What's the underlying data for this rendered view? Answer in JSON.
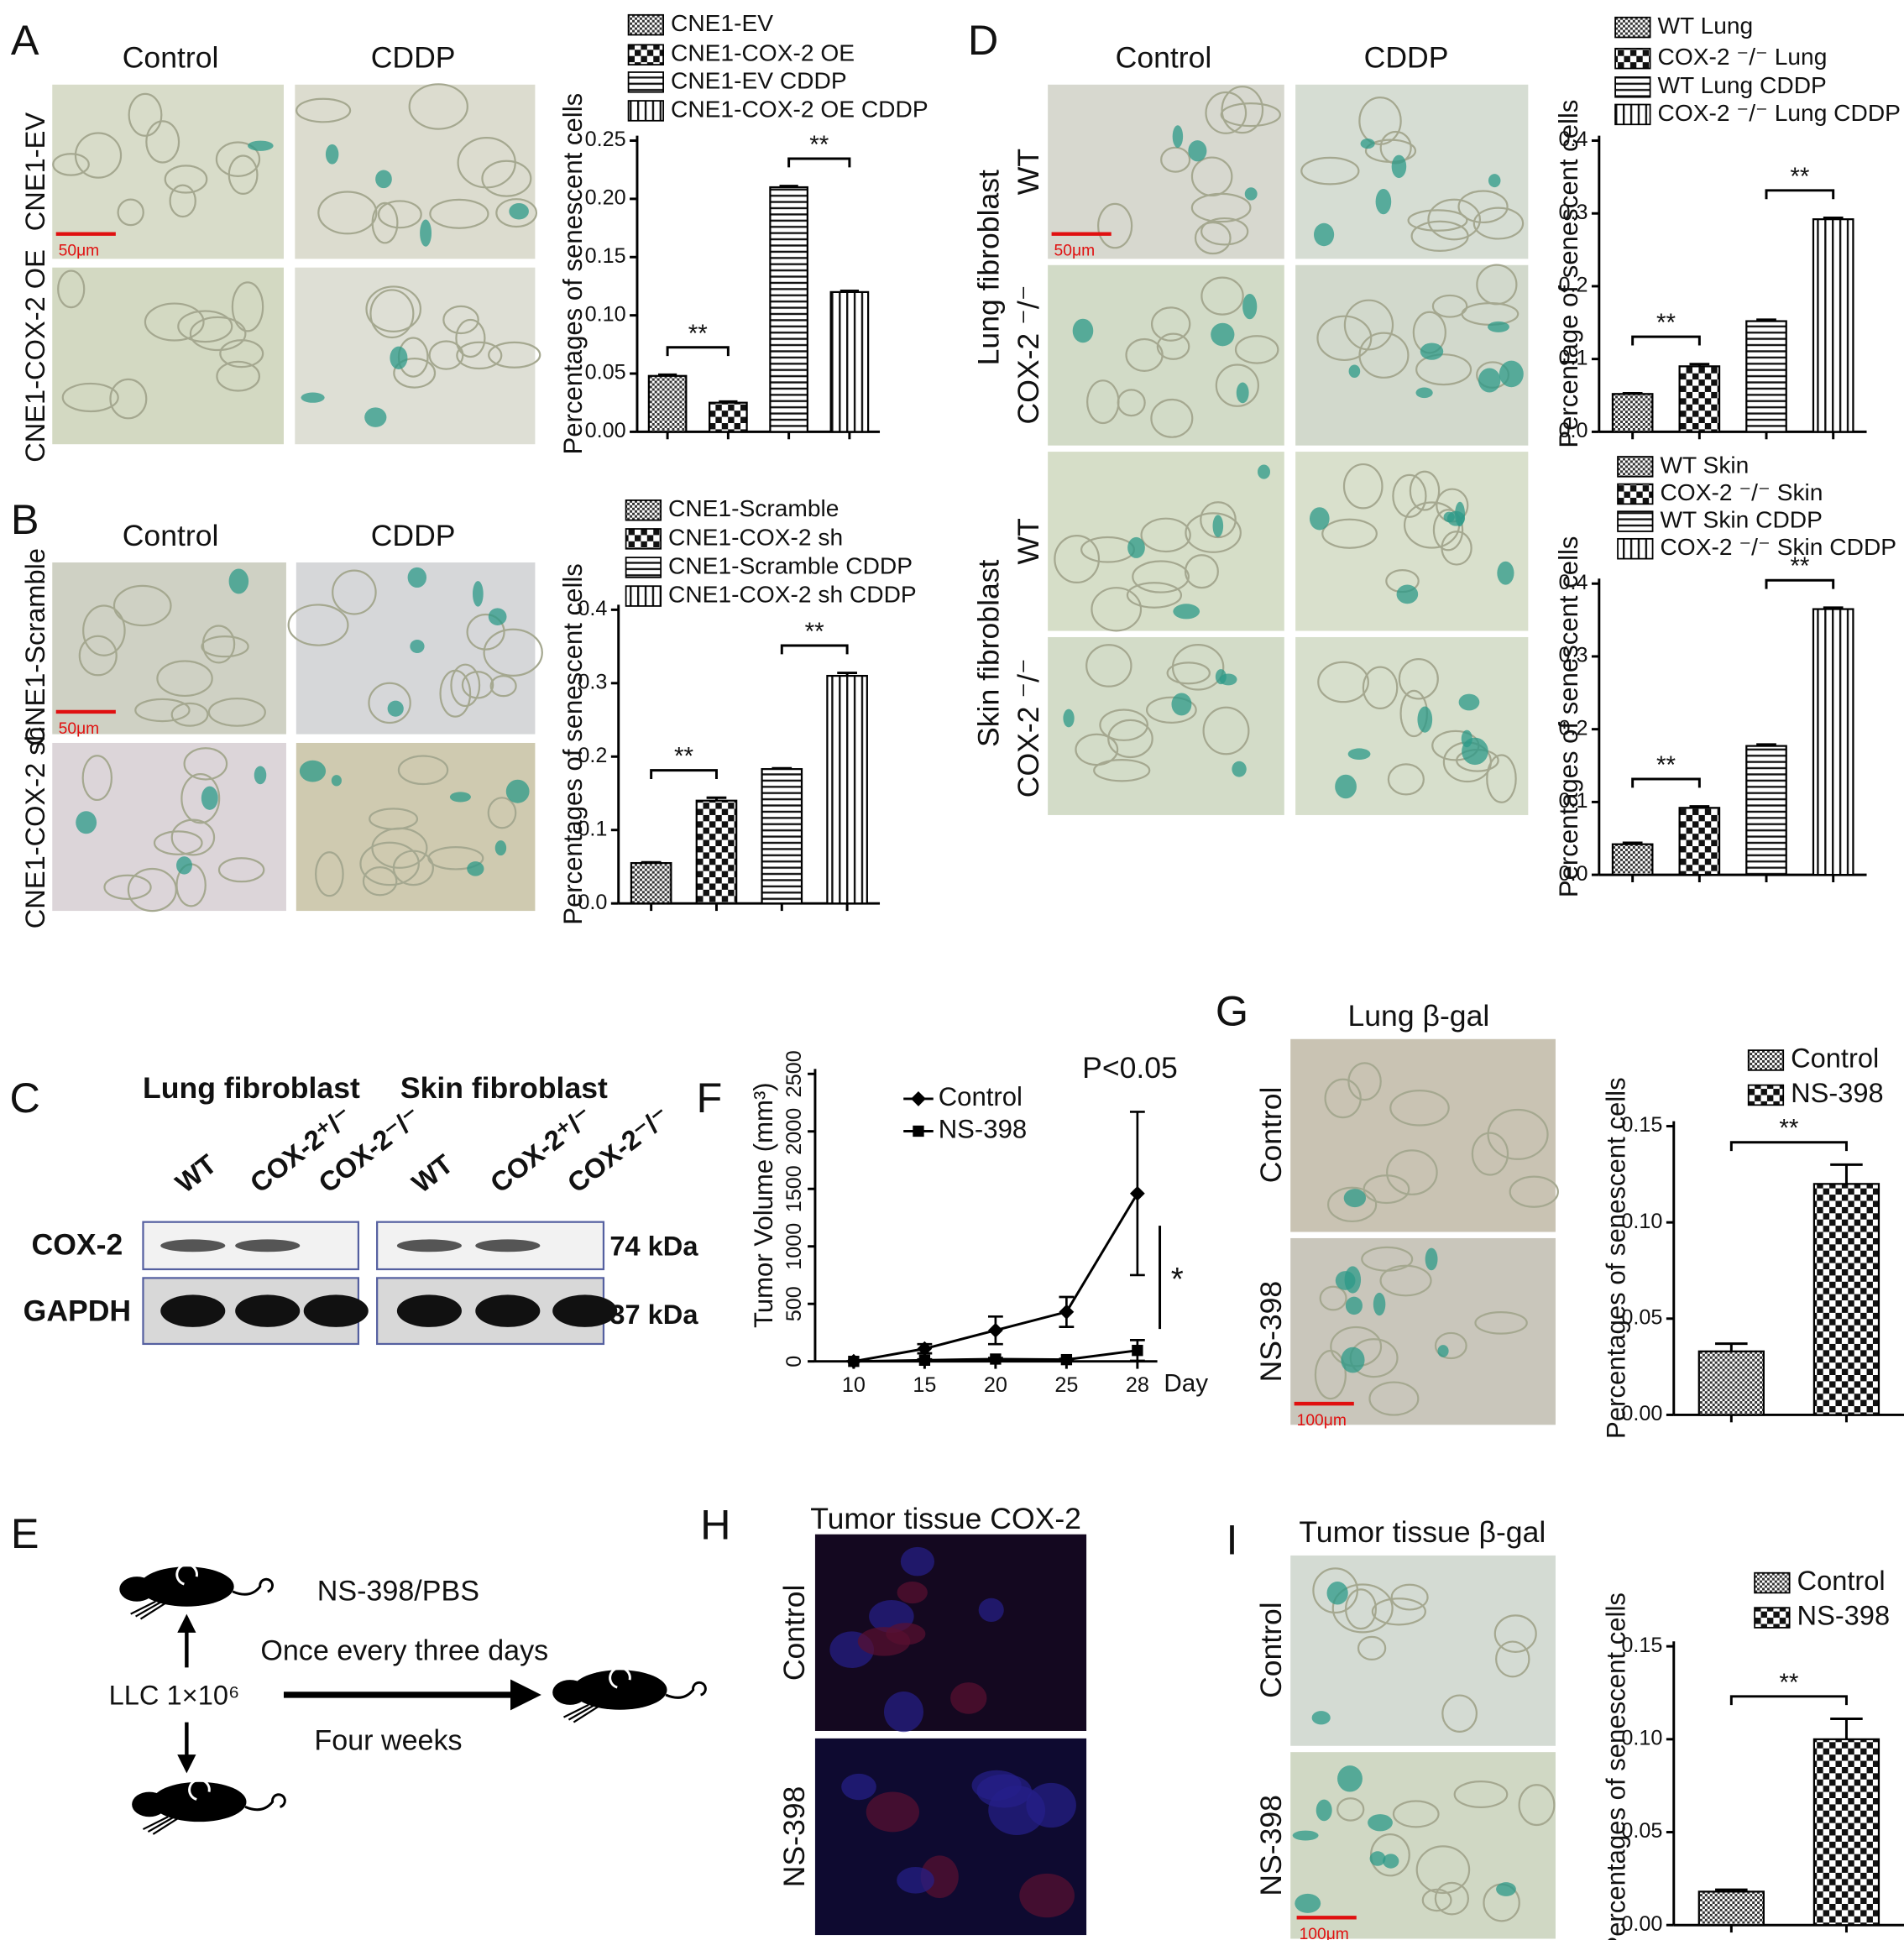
{
  "panel_letters": [
    "A",
    "B",
    "C",
    "D",
    "E",
    "F",
    "G",
    "H",
    "I"
  ],
  "micrographs": {
    "A": {
      "columns": [
        "Control",
        "CDDP"
      ],
      "rows": [
        "CNE1-EV",
        "CNE1-COX-2 OE"
      ],
      "scale_bar": "50μm"
    },
    "B": {
      "columns": [
        "Control",
        "CDDP"
      ],
      "rows": [
        "CNE1-Scramble",
        "CNE1-COX-2 sh"
      ],
      "scale_bar": "50μm"
    },
    "D": {
      "columns": [
        "Control",
        "CDDP"
      ],
      "groups": [
        "Lung fibroblast",
        "Skin fibroblast"
      ],
      "rows": [
        "WT",
        "COX-2 ⁻/⁻",
        "WT",
        "COX-2 ⁻/⁻"
      ],
      "scale_bar": "50μm"
    },
    "G": {
      "title": "Lung β-gal",
      "rows": [
        "Control",
        "NS-398"
      ],
      "scale_bar": "100μm"
    },
    "H": {
      "title": "Tumor tissue COX-2",
      "rows": [
        "Control",
        "NS-398"
      ]
    },
    "I": {
      "title": "Tumor tissue β-gal",
      "rows": [
        "Control",
        "NS-398"
      ],
      "scale_bar": "100μm"
    }
  },
  "western_blot": {
    "groups": [
      {
        "name": "Lung  fibroblast",
        "lanes": [
          "WT",
          "COX-2⁺/⁻",
          "COX-2⁻/⁻"
        ]
      },
      {
        "name": "Skin fibroblast",
        "lanes": [
          "WT",
          "COX-2⁺/⁻",
          "COX-2⁻/⁻"
        ]
      }
    ],
    "proteins": [
      {
        "name": "COX-2",
        "size": "74 kDa"
      },
      {
        "name": "GAPDH",
        "size": "37 kDa"
      }
    ]
  },
  "schematic": {
    "cells": "LLC 1×10⁶",
    "treatment": "NS-398/PBS",
    "frequency": "Once  every three days",
    "duration": "Four  weeks"
  },
  "chart_data": [
    {
      "type": "bar",
      "ylabel": "Percentages of senescent cells",
      "ylim": [
        0,
        0.25
      ],
      "yticks": [
        {
          "value": 0,
          "label": "0.00"
        },
        0.05,
        {
          "value": 0.1,
          "label": "0.10"
        },
        0.15,
        {
          "value": 0.2,
          "label": "0.20"
        },
        0.25
      ],
      "series": [
        {
          "name": "CNE1-EV",
          "pattern": "dots",
          "values": [
            0.048
          ],
          "errors": [
            0.001
          ]
        },
        {
          "name": "CNE1-COX-2 OE",
          "pattern": "checker",
          "values": [
            0.025
          ],
          "errors": [
            0.001
          ]
        },
        {
          "name": "CNE1-EV CDDP",
          "pattern": "horizontal",
          "values": [
            0.21
          ],
          "errors": [
            0.001
          ]
        },
        {
          "name": "CNE1-COX-2 OE CDDP",
          "pattern": "vertical",
          "values": [
            0.12
          ],
          "errors": [
            0.001
          ]
        }
      ],
      "annotations": [
        "**",
        "**"
      ]
    },
    {
      "type": "bar",
      "ylabel": "Percentages of senescent cells",
      "ylim": [
        0,
        0.4
      ],
      "yticks": [
        {
          "value": 0,
          "label": "0.0"
        },
        0.1,
        0.2,
        0.3,
        0.4
      ],
      "series": [
        {
          "name": "CNE1-Scramble",
          "pattern": "dots",
          "values": [
            0.055
          ],
          "errors": [
            0.001
          ]
        },
        {
          "name": "CNE1-COX-2 sh",
          "pattern": "checker",
          "values": [
            0.14
          ],
          "errors": [
            0.004
          ]
        },
        {
          "name": "CNE1-Scramble CDDP",
          "pattern": "horizontal",
          "values": [
            0.183
          ],
          "errors": [
            0.001
          ]
        },
        {
          "name": "CNE1-COX-2 sh CDDP",
          "pattern": "vertical",
          "values": [
            0.31
          ],
          "errors": [
            0.004
          ]
        }
      ],
      "annotations": [
        "**",
        "**"
      ]
    },
    {
      "type": "bar",
      "ylabel": "Percentage of senescent cells",
      "ylim": [
        0,
        0.4
      ],
      "yticks": [
        {
          "value": 0,
          "label": "0.0"
        },
        0.1,
        0.2,
        0.3,
        0.4
      ],
      "series": [
        {
          "name": "WT Lung",
          "pattern": "dots",
          "values": [
            0.052
          ],
          "errors": [
            0.001
          ]
        },
        {
          "name": "COX-2 ⁻/⁻ Lung",
          "pattern": "checker",
          "values": [
            0.09
          ],
          "errors": [
            0.003
          ]
        },
        {
          "name": "WT Lung CDDP",
          "pattern": "horizontal",
          "values": [
            0.152
          ],
          "errors": [
            0.002
          ]
        },
        {
          "name": "COX-2 ⁻/⁻ Lung CDDP",
          "pattern": "vertical",
          "values": [
            0.292
          ],
          "errors": [
            0.002
          ]
        }
      ],
      "annotations": [
        "**",
        "**"
      ]
    },
    {
      "type": "bar",
      "ylabel": "Percentages of senescent cells",
      "ylim": [
        0,
        0.4
      ],
      "yticks": [
        {
          "value": 0,
          "label": "0.0"
        },
        0.1,
        0.2,
        0.3,
        0.4
      ],
      "series": [
        {
          "name": "WT Skin",
          "pattern": "dots",
          "values": [
            0.042
          ],
          "errors": [
            0.002
          ]
        },
        {
          "name": "COX-2 ⁻/⁻ Skin",
          "pattern": "checker",
          "values": [
            0.092
          ],
          "errors": [
            0.002
          ]
        },
        {
          "name": "WT Skin CDDP",
          "pattern": "horizontal",
          "values": [
            0.177
          ],
          "errors": [
            0.002
          ]
        },
        {
          "name": "COX-2 ⁻/⁻ Skin CDDP",
          "pattern": "vertical",
          "values": [
            0.365
          ],
          "errors": [
            0.002
          ]
        }
      ],
      "annotations": [
        "**",
        "**"
      ]
    },
    {
      "type": "line",
      "title": "P<0.05",
      "ylabel": "Tumor Volume (mm³)",
      "xlabel": "Day",
      "categories": [
        "10",
        "15",
        "20",
        "25",
        "28"
      ],
      "ylim": [
        0,
        2500
      ],
      "yticks": [
        0,
        500,
        1000,
        1500,
        2000,
        2500
      ],
      "series": [
        {
          "name": "Control",
          "marker": "diamond",
          "values": [
            0,
            110,
            270,
            430,
            1460
          ],
          "errors": [
            0,
            40,
            120,
            130,
            710
          ]
        },
        {
          "name": "NS-398",
          "marker": "square",
          "values": [
            0,
            10,
            20,
            15,
            95
          ],
          "errors": [
            0,
            8,
            10,
            8,
            90
          ]
        }
      ],
      "annotations": [
        "*"
      ]
    },
    {
      "type": "bar",
      "ylabel": "Percentages of senescent cells",
      "ylim": [
        0,
        0.15
      ],
      "yticks": [
        {
          "value": 0,
          "label": "0.00"
        },
        0.05,
        {
          "value": 0.1,
          "label": "0.10"
        },
        0.15
      ],
      "series": [
        {
          "name": "Control",
          "pattern": "dots",
          "values": [
            0.033
          ],
          "errors": [
            0.004
          ]
        },
        {
          "name": "NS-398",
          "pattern": "checker",
          "values": [
            0.12
          ],
          "errors": [
            0.01
          ]
        }
      ],
      "annotations": [
        "**"
      ]
    },
    {
      "type": "bar",
      "ylabel": "Percentages of senescent cells",
      "ylim": [
        0,
        0.15
      ],
      "yticks": [
        {
          "value": 0,
          "label": "0.00"
        },
        0.05,
        {
          "value": 0.1,
          "label": "0.10"
        },
        0.15
      ],
      "series": [
        {
          "name": "Control",
          "pattern": "dots",
          "values": [
            0.018
          ],
          "errors": [
            0.001
          ]
        },
        {
          "name": "NS-398",
          "pattern": "checker",
          "values": [
            0.1
          ],
          "errors": [
            0.011
          ]
        }
      ],
      "annotations": [
        "**"
      ]
    }
  ]
}
